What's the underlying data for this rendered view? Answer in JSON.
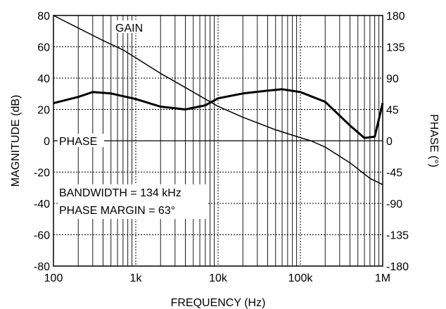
{
  "chart_data": {
    "type": "line",
    "title": "",
    "xlabel": "FREQUENCY (Hz)",
    "ylabel": "MAGNITUDE (dB)",
    "y2label": "PHASE (°)",
    "x_scale": "log",
    "xlim": [
      100,
      1000000
    ],
    "ylim": [
      -80,
      80
    ],
    "y2lim": [
      -180,
      180
    ],
    "grid": true,
    "x_tick_labels": [
      "100",
      "1k",
      "10k",
      "100k",
      "1M"
    ],
    "y_tick_labels": [
      "80",
      "60",
      "40",
      "20",
      "0",
      "-20",
      "-40",
      "-60",
      "-80"
    ],
    "y2_tick_labels": [
      "180",
      "135",
      "90",
      "45",
      "0",
      "-45",
      "-90",
      "-135",
      "-180"
    ],
    "annotations": {
      "gain_label": "GAIN",
      "phase_label": "PHASE",
      "bandwidth": "BANDWIDTH = 134 kHz",
      "phase_margin": "PHASE MARGIN = 63°"
    },
    "series": [
      {
        "name": "GAIN",
        "axis": "left",
        "x": [
          100,
          200,
          400,
          700,
          1000,
          2000,
          4000,
          10000,
          20000,
          50000,
          100000,
          134000,
          200000,
          400000,
          700000,
          1000000
        ],
        "y": [
          80,
          72,
          64,
          58,
          53,
          43,
          34,
          22,
          15,
          7,
          2,
          0,
          -4,
          -14,
          -24,
          -28
        ]
      },
      {
        "name": "PHASE",
        "axis": "right",
        "x": [
          100,
          200,
          300,
          500,
          1000,
          2000,
          4000,
          7000,
          10000,
          20000,
          40000,
          60000,
          100000,
          200000,
          400000,
          600000,
          800000,
          1000000
        ],
        "y": [
          54,
          63,
          70,
          68,
          60,
          49,
          45,
          51,
          61,
          68,
          72,
          74,
          70,
          56,
          22,
          4,
          6,
          54
        ]
      }
    ]
  }
}
